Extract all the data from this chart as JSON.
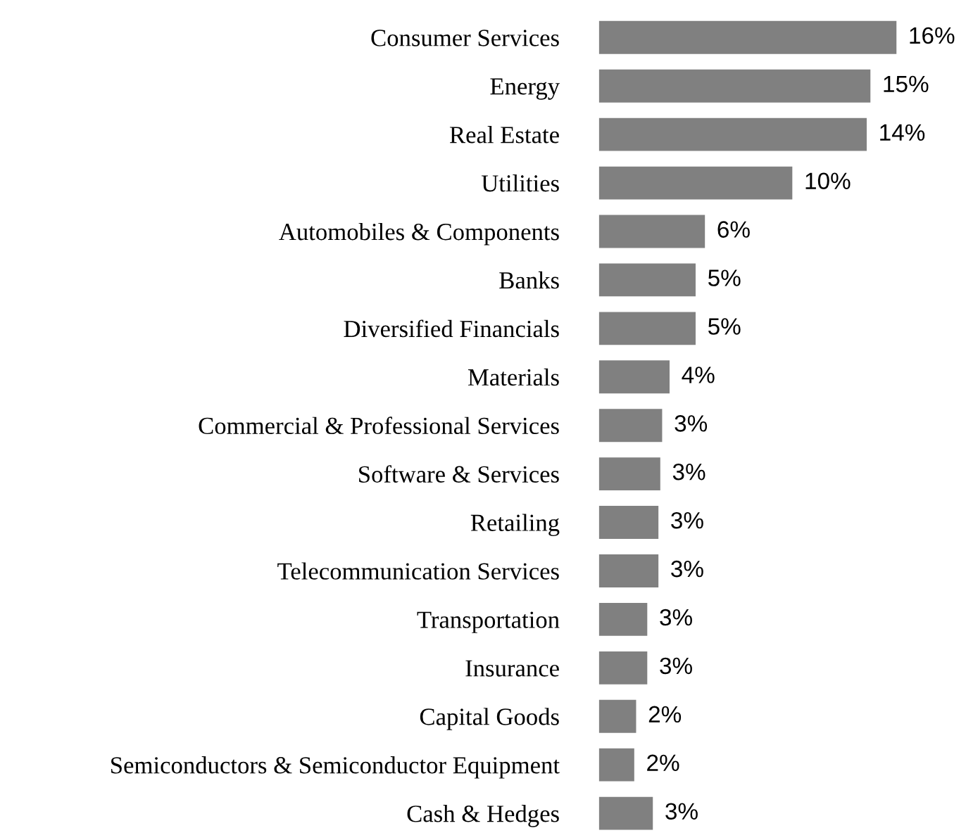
{
  "chart_data": {
    "type": "bar",
    "orientation": "horizontal",
    "color": "#808080",
    "categories": [
      "Consumer Services",
      "Energy",
      "Real Estate",
      "Utilities",
      "Automobiles & Components",
      "Banks",
      "Diversified Financials",
      "Materials",
      "Commercial & Professional Services",
      "Software & Services",
      "Retailing",
      "Telecommunication Services",
      "Transportation",
      "Insurance",
      "Capital Goods",
      "Semiconductors & Semiconductor Equipment",
      "Cash & Hedges"
    ],
    "values": [
      16.0,
      14.6,
      14.4,
      10.4,
      5.7,
      5.2,
      5.2,
      3.8,
      3.4,
      3.3,
      3.2,
      3.2,
      2.6,
      2.6,
      2.0,
      1.9,
      2.9
    ],
    "value_labels": [
      "16%",
      "15%",
      "14%",
      "10%",
      "6%",
      "5%",
      "5%",
      "4%",
      "3%",
      "3%",
      "3%",
      "3%",
      "3%",
      "3%",
      "2%",
      "2%",
      "3%"
    ]
  }
}
